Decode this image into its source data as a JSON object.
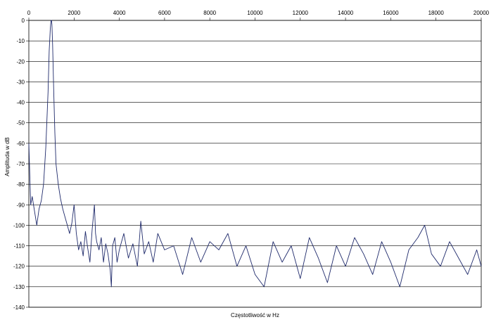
{
  "chart_data": {
    "type": "line",
    "title": "",
    "xlabel": "Częstotliwość w Hz",
    "ylabel": "Amplituda w dB",
    "xlim": [
      0,
      20000
    ],
    "ylim": [
      -140,
      0
    ],
    "x_ticks": [
      0,
      2000,
      4000,
      6000,
      8000,
      10000,
      12000,
      14000,
      16000,
      18000,
      20000
    ],
    "y_ticks": [
      0,
      -10,
      -20,
      -30,
      -40,
      -50,
      -60,
      -70,
      -80,
      -90,
      -100,
      -110,
      -120,
      -130,
      -140
    ],
    "x_axis_position": "top",
    "grid": "horizontal",
    "legend": "none",
    "line_color": "#1f2a6b",
    "series": [
      {
        "x": [
          0,
          80,
          150,
          250,
          350,
          450,
          550,
          650,
          750,
          850,
          900,
          950,
          980,
          1000,
          1020,
          1050,
          1100,
          1150,
          1200,
          1300,
          1400,
          1500,
          1600,
          1700,
          1800,
          1900,
          2000,
          2100,
          2200,
          2300,
          2400,
          2500,
          2600,
          2700,
          2800,
          2900,
          2950,
          3000,
          3100,
          3200,
          3300,
          3400,
          3500,
          3600,
          3650,
          3700,
          3800,
          3900,
          4000,
          4200,
          4400,
          4600,
          4800,
          4950,
          5100,
          5300,
          5500,
          5700,
          6000,
          6400,
          6800,
          7200,
          7600,
          8000,
          8400,
          8800,
          9200,
          9600,
          10000,
          10400,
          10800,
          11200,
          11600,
          12000,
          12400,
          12800,
          13200,
          13600,
          14000,
          14400,
          14800,
          15200,
          15600,
          16000,
          16400,
          16800,
          17200,
          17500,
          17800,
          18200,
          18600,
          19000,
          19400,
          19800,
          20000
        ],
        "y": [
          -60,
          -90,
          -86,
          -93,
          -100,
          -92,
          -88,
          -80,
          -62,
          -35,
          -15,
          -4,
          0,
          0,
          -2,
          -12,
          -35,
          -55,
          -70,
          -80,
          -87,
          -92,
          -96,
          -100,
          -104,
          -99,
          -90,
          -104,
          -112,
          -108,
          -115,
          -103,
          -111,
          -118,
          -102,
          -90,
          -104,
          -108,
          -112,
          -106,
          -118,
          -109,
          -114,
          -122,
          -130,
          -110,
          -106,
          -118,
          -112,
          -104,
          -116,
          -109,
          -120,
          -98,
          -114,
          -108,
          -118,
          -104,
          -112,
          -110,
          -124,
          -106,
          -118,
          -108,
          -112,
          -104,
          -120,
          -110,
          -124,
          -130,
          -108,
          -118,
          -110,
          -126,
          -106,
          -116,
          -128,
          -110,
          -120,
          -106,
          -114,
          -124,
          -108,
          -118,
          -130,
          -112,
          -106,
          -100,
          -114,
          -120,
          -108,
          -116,
          -124,
          -112,
          -120
        ]
      }
    ]
  }
}
